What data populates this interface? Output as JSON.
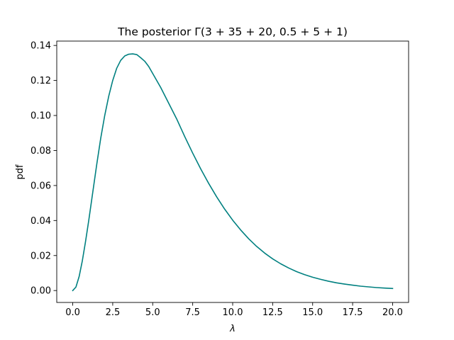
{
  "chart_data": {
    "type": "line",
    "title": "The posterior Γ(3 + 35 + 20, 0.5 + 5 + 1)",
    "xlabel": "λ",
    "ylabel": "pdf",
    "xlim": [
      -1.0,
      21.0
    ],
    "ylim": [
      -0.0068,
      0.1425
    ],
    "xticks": [
      0.0,
      2.5,
      5.0,
      7.5,
      10.0,
      12.5,
      15.0,
      17.5,
      20.0
    ],
    "xtick_labels": [
      "0.0",
      "2.5",
      "5.0",
      "7.5",
      "10.0",
      "12.5",
      "15.0",
      "17.5",
      "20.0"
    ],
    "yticks": [
      0.0,
      0.02,
      0.04,
      0.06,
      0.08,
      0.1,
      0.12,
      0.14
    ],
    "ytick_labels": [
      "0.00",
      "0.02",
      "0.04",
      "0.06",
      "0.08",
      "0.10",
      "0.12",
      "0.14"
    ],
    "grid": false,
    "color": "#008080",
    "series": [
      {
        "x": [
          0.0,
          0.2,
          0.4,
          0.6,
          0.8,
          1.0,
          1.25,
          1.5,
          1.75,
          2.0,
          2.25,
          2.5,
          2.75,
          3.0,
          3.25,
          3.5,
          3.75,
          4.0,
          4.25,
          4.5,
          4.75,
          5.0,
          5.5,
          6.0,
          6.5,
          7.0,
          7.5,
          8.0,
          8.5,
          9.0,
          9.5,
          10.0,
          10.5,
          11.0,
          11.5,
          12.0,
          12.5,
          13.0,
          13.5,
          14.0,
          14.5,
          15.0,
          15.5,
          16.0,
          16.5,
          17.0,
          17.5,
          18.0,
          18.5,
          19.0,
          19.5,
          20.0
        ],
        "values": [
          0.0,
          0.002,
          0.008,
          0.017,
          0.028,
          0.04,
          0.056,
          0.072,
          0.087,
          0.1,
          0.111,
          0.12,
          0.127,
          0.1315,
          0.134,
          0.135,
          0.1352,
          0.1348,
          0.133,
          0.131,
          0.128,
          0.124,
          0.116,
          0.107,
          0.098,
          0.088,
          0.0785,
          0.0695,
          0.0612,
          0.0535,
          0.0465,
          0.0402,
          0.0346,
          0.0296,
          0.0252,
          0.0214,
          0.0181,
          0.0153,
          0.0129,
          0.0108,
          0.0091,
          0.0076,
          0.0064,
          0.0053,
          0.0044,
          0.0037,
          0.0031,
          0.0025,
          0.0021,
          0.0017,
          0.0014,
          0.0012
        ]
      }
    ]
  }
}
